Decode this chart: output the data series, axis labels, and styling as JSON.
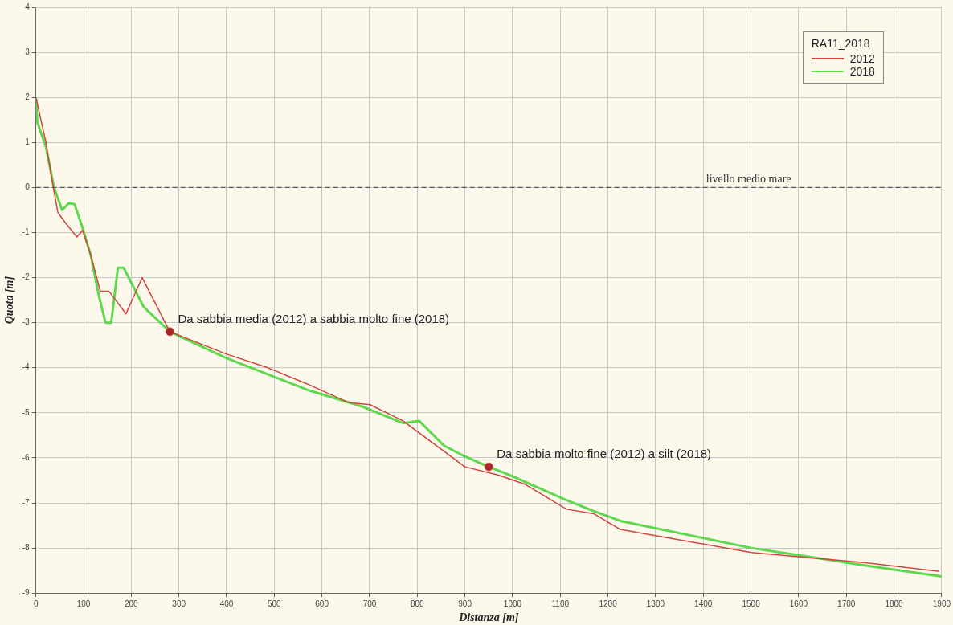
{
  "chart_data": {
    "type": "line",
    "xlabel": "Distanza [m]",
    "ylabel": "Quota [m]",
    "legend_title": "RA11_2018",
    "legend": "top right",
    "grid": true,
    "line_style": "solid",
    "marker": "none",
    "xlim": [
      0,
      1900
    ],
    "xticks": [
      0,
      100,
      200,
      300,
      400,
      500,
      600,
      700,
      800,
      900,
      1000,
      1100,
      1200,
      1300,
      1400,
      1500,
      1600,
      1700,
      1800,
      1900
    ],
    "ylim": [
      -9,
      4
    ],
    "yticks": [
      -9,
      -8,
      -7,
      -6,
      -5,
      -4,
      -3,
      -2,
      -1,
      0,
      1,
      2,
      3,
      4
    ],
    "series": [
      {
        "name": "2012",
        "color": "#d0473f",
        "x": [
          0,
          21,
          34,
          46,
          63,
          86,
          98,
          115,
          135,
          153,
          189,
          223,
          281,
          398,
          484,
          569,
          655,
          701,
          770,
          900,
          969,
          1027,
          1113,
          1170,
          1226,
          1285,
          1501,
          1741,
          1895
        ],
        "values": [
          2.0,
          1.0,
          0.15,
          -0.55,
          -0.8,
          -1.1,
          -0.95,
          -1.5,
          -2.3,
          -2.3,
          -2.8,
          -2.0,
          -3.2,
          -3.69,
          -3.99,
          -4.36,
          -4.77,
          -4.82,
          -5.18,
          -6.2,
          -6.38,
          -6.59,
          -7.14,
          -7.24,
          -7.59,
          -7.7,
          -8.1,
          -8.33,
          -8.52
        ]
      },
      {
        "name": "2018",
        "color": "#5fd84e",
        "x": [
          0,
          3,
          21,
          38,
          55,
          69,
          81,
          98,
          115,
          132,
          146,
          158,
          172,
          184,
          226,
          281,
          398,
          569,
          684,
          770,
          804,
          856,
          900,
          941,
          998,
          1113,
          1170,
          1226,
          1501,
          1741,
          1900
        ],
        "values": [
          2.0,
          1.45,
          0.9,
          0,
          -0.5,
          -0.35,
          -0.37,
          -0.9,
          -1.5,
          -2.4,
          -3.0,
          -3.0,
          -1.78,
          -1.78,
          -2.65,
          -3.2,
          -3.78,
          -4.49,
          -4.86,
          -5.23,
          -5.18,
          -5.73,
          -5.97,
          -6.16,
          -6.4,
          -6.94,
          -7.18,
          -7.4,
          -8.0,
          -8.39,
          -8.63
        ]
      }
    ],
    "ref_lines": [
      {
        "axis": "y",
        "value": 0,
        "label": "livello medio mare",
        "color": "#555555",
        "line_style": "dashed"
      }
    ],
    "annotations": [
      {
        "text": "Da sabbia media (2012) a sabbia molto fine (2018)",
        "x": 281,
        "y": -3.2
      },
      {
        "text": "Da sabbia molto fine (2012) a silt (2018)",
        "x": 950,
        "y": -6.2
      }
    ]
  }
}
